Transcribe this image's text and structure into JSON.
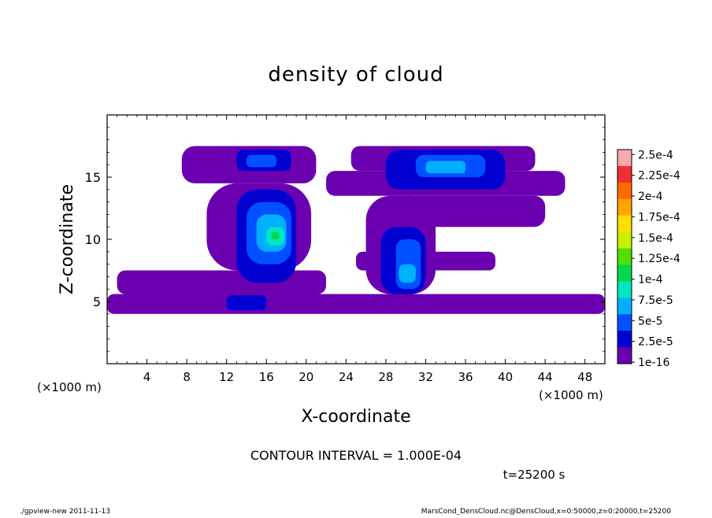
{
  "chart_data": {
    "type": "heatmap",
    "title": "density of cloud",
    "xlabel": "X-coordinate",
    "ylabel": "Z-coordinate",
    "x_unit_label": "(×1000 m)",
    "x_unit_label_right": "(×1000 m)",
    "xlim": [
      0,
      50
    ],
    "ylim": [
      0,
      20
    ],
    "x_ticks": [
      4,
      8,
      12,
      16,
      20,
      24,
      28,
      32,
      36,
      40,
      44,
      48
    ],
    "y_ticks": [
      5,
      10,
      15
    ],
    "colorbar": {
      "labels": [
        "2.5e-4",
        "2.25e-4",
        "2e-4",
        "1.75e-4",
        "1.5e-4",
        "1.25e-4",
        "1e-4",
        "7.5e-5",
        "5e-5",
        "2.5e-5",
        "1e-16"
      ],
      "colors": [
        "#f7a8b0",
        "#f03030",
        "#ff6a00",
        "#ffa500",
        "#ffe000",
        "#c8f000",
        "#50e000",
        "#00d850",
        "#00e8c0",
        "#00b0ff",
        "#0050ff",
        "#0000d0",
        "#6a00b0"
      ]
    },
    "contour_interval_text": "CONTOUR INTERVAL = 1.000E-04",
    "time_text": "t=25200 s",
    "regions": [
      {
        "level": 0,
        "x": [
          0,
          50
        ],
        "z": [
          4.0,
          5.6
        ]
      },
      {
        "level": 0,
        "x": [
          1,
          22
        ],
        "z": [
          5.6,
          7.5
        ]
      },
      {
        "level": 0,
        "x": [
          7.5,
          21
        ],
        "z": [
          14.5,
          17.5
        ]
      },
      {
        "level": 0,
        "x": [
          10,
          20.5
        ],
        "z": [
          7.5,
          14.5
        ]
      },
      {
        "level": 0,
        "x": [
          22,
          46
        ],
        "z": [
          13.5,
          15.5
        ]
      },
      {
        "level": 0,
        "x": [
          24.5,
          43
        ],
        "z": [
          15.5,
          17.5
        ]
      },
      {
        "level": 0,
        "x": [
          26,
          33
        ],
        "z": [
          5.6,
          13.5
        ]
      },
      {
        "level": 0,
        "x": [
          30,
          44
        ],
        "z": [
          11,
          13.5
        ]
      },
      {
        "level": 0,
        "x": [
          25,
          39
        ],
        "z": [
          7.5,
          9
        ]
      },
      {
        "level": 1,
        "x": [
          13,
          19
        ],
        "z": [
          6.5,
          14
        ]
      },
      {
        "level": 1,
        "x": [
          13,
          18.5
        ],
        "z": [
          15.5,
          17.2
        ]
      },
      {
        "level": 1,
        "x": [
          27.5,
          32
        ],
        "z": [
          5.6,
          11
        ]
      },
      {
        "level": 1,
        "x": [
          28,
          40
        ],
        "z": [
          14,
          17.2
        ]
      },
      {
        "level": 1,
        "x": [
          12,
          16
        ],
        "z": [
          4.3,
          5.5
        ]
      },
      {
        "level": 2,
        "x": [
          14,
          18.5
        ],
        "z": [
          8,
          13
        ]
      },
      {
        "level": 2,
        "x": [
          29,
          31.5
        ],
        "z": [
          6,
          10
        ]
      },
      {
        "level": 2,
        "x": [
          31,
          38
        ],
        "z": [
          15,
          16.8
        ]
      },
      {
        "level": 2,
        "x": [
          14,
          17
        ],
        "z": [
          15.8,
          16.8
        ]
      },
      {
        "level": 3,
        "x": [
          15,
          18
        ],
        "z": [
          9,
          12
        ]
      },
      {
        "level": 3,
        "x": [
          32,
          36
        ],
        "z": [
          15.3,
          16.3
        ]
      },
      {
        "level": 3,
        "x": [
          29.3,
          31
        ],
        "z": [
          6.5,
          8
        ]
      },
      {
        "level": 4,
        "x": [
          16,
          17.8
        ],
        "z": [
          9.5,
          11
        ]
      },
      {
        "level": 5,
        "x": [
          16.5,
          17.3
        ],
        "z": [
          10,
          10.6
        ]
      }
    ]
  },
  "footer": {
    "left": "./gpview-new   2011-11-13",
    "right": "MarsCond_DensCloud.nc@DensCloud,x=0:50000,z=0:20000,t=25200"
  }
}
